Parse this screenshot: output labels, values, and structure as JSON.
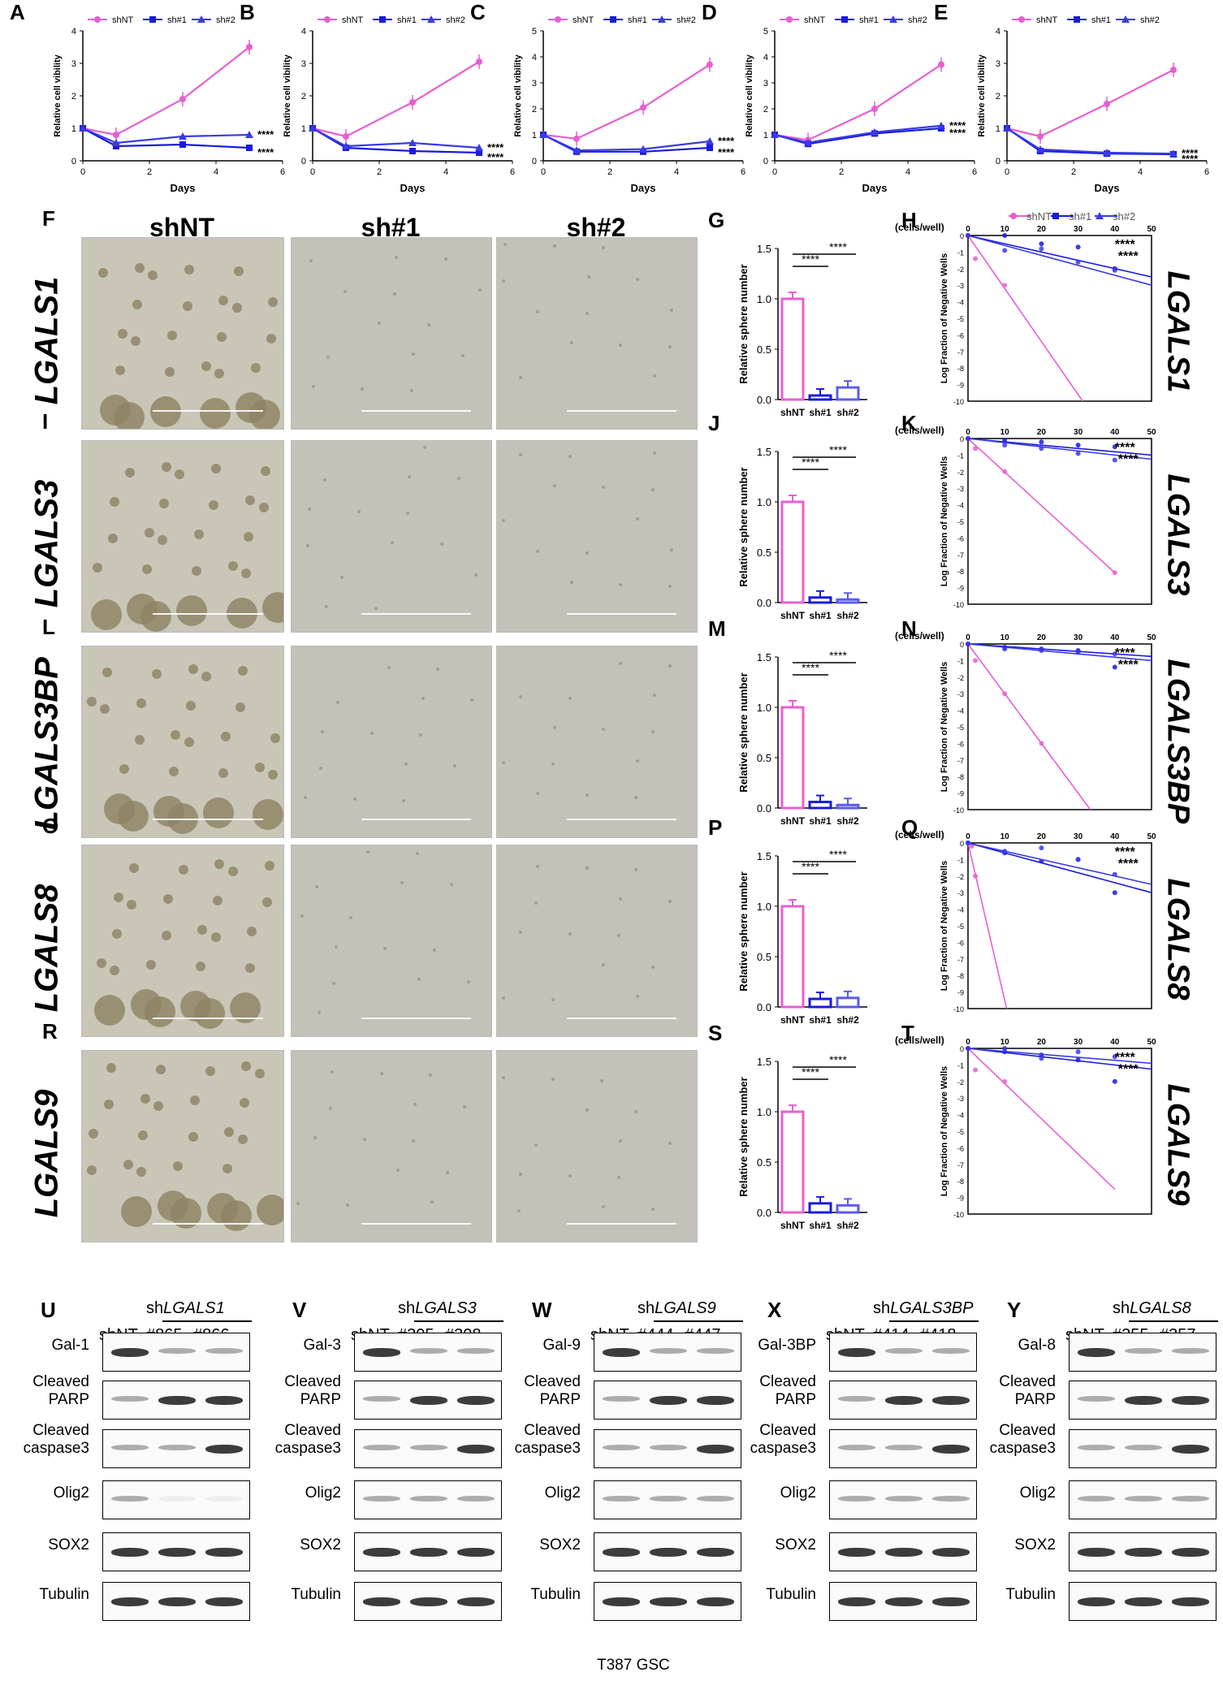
{
  "colors": {
    "shNT": "#e85fd0",
    "sh1": "#1a1adc",
    "sh2": "#3a3ae8",
    "sig": "#000000"
  },
  "growth": {
    "legend": [
      "shNT",
      "sh#1",
      "sh#2"
    ],
    "xlabel": "Days",
    "ylabel": "Relative cell vibility",
    "xticks": [
      "0",
      "2",
      "4",
      "6"
    ],
    "yticks": [
      "0",
      "1",
      "2",
      "3",
      "4"
    ],
    "sig": "****"
  },
  "chart_data": [
    {
      "panel": "A",
      "type": "line",
      "x": [
        0,
        1,
        3,
        5
      ],
      "series": [
        {
          "name": "shNT",
          "values": [
            1.0,
            0.8,
            1.9,
            3.5
          ]
        },
        {
          "name": "sh#1",
          "values": [
            1.0,
            0.45,
            0.5,
            0.4
          ]
        },
        {
          "name": "sh#2",
          "values": [
            1.0,
            0.55,
            0.75,
            0.8
          ]
        }
      ],
      "xlabel": "Days",
      "ylabel": "Relative cell vibility",
      "xlim": [
        0,
        6
      ],
      "ylim": [
        0,
        4
      ]
    },
    {
      "panel": "B",
      "type": "line",
      "x": [
        0,
        1,
        3,
        5
      ],
      "series": [
        {
          "name": "shNT",
          "values": [
            1.0,
            0.75,
            1.8,
            3.05
          ]
        },
        {
          "name": "sh#1",
          "values": [
            1.0,
            0.4,
            0.3,
            0.25
          ]
        },
        {
          "name": "sh#2",
          "values": [
            1.0,
            0.45,
            0.55,
            0.4
          ]
        }
      ],
      "xlabel": "Days",
      "ylabel": "Relative cell vibility",
      "xlim": [
        0,
        6
      ],
      "ylim": [
        0,
        4
      ]
    },
    {
      "panel": "C",
      "type": "line",
      "x": [
        0,
        1,
        3,
        5
      ],
      "series": [
        {
          "name": "shNT",
          "values": [
            1.0,
            0.85,
            2.05,
            3.7
          ]
        },
        {
          "name": "sh#1",
          "values": [
            1.0,
            0.35,
            0.35,
            0.5
          ]
        },
        {
          "name": "sh#2",
          "values": [
            1.0,
            0.4,
            0.45,
            0.75
          ]
        }
      ],
      "xlabel": "Days",
      "ylabel": "Relative cell vibility",
      "xlim": [
        0,
        6
      ],
      "ylim": [
        0,
        5
      ]
    },
    {
      "panel": "D",
      "type": "line",
      "x": [
        0,
        1,
        3,
        5
      ],
      "series": [
        {
          "name": "shNT",
          "values": [
            1.0,
            0.8,
            2.0,
            3.7
          ]
        },
        {
          "name": "sh#1",
          "values": [
            1.0,
            0.65,
            1.05,
            1.25
          ]
        },
        {
          "name": "sh#2",
          "values": [
            1.0,
            0.7,
            1.1,
            1.35
          ]
        }
      ],
      "xlabel": "Days",
      "ylabel": "Relative cell vibility",
      "xlim": [
        0,
        6
      ],
      "ylim": [
        0,
        5
      ]
    },
    {
      "panel": "E",
      "type": "line",
      "x": [
        0,
        1,
        3,
        5
      ],
      "series": [
        {
          "name": "shNT",
          "values": [
            1.0,
            0.75,
            1.75,
            2.8
          ]
        },
        {
          "name": "sh#1",
          "values": [
            1.0,
            0.3,
            0.22,
            0.2
          ]
        },
        {
          "name": "sh#2",
          "values": [
            1.0,
            0.35,
            0.25,
            0.22
          ]
        }
      ],
      "xlabel": "Days",
      "ylabel": "Relative cell vibility",
      "xlim": [
        0,
        6
      ],
      "ylim": [
        0,
        4
      ]
    },
    {
      "panel": "G",
      "type": "bar",
      "categories": [
        "shNT",
        "sh#1",
        "sh#2"
      ],
      "values": [
        1.0,
        0.04,
        0.12
      ],
      "ylabel": "Relative sphere number",
      "ylim": [
        0,
        1.5
      ]
    },
    {
      "panel": "J",
      "type": "bar",
      "categories": [
        "shNT",
        "sh#1",
        "sh#2"
      ],
      "values": [
        1.0,
        0.05,
        0.03
      ],
      "ylabel": "Relative sphere number",
      "ylim": [
        0,
        1.5
      ]
    },
    {
      "panel": "M",
      "type": "bar",
      "categories": [
        "shNT",
        "sh#1",
        "sh#2"
      ],
      "values": [
        1.0,
        0.06,
        0.03
      ],
      "ylabel": "Relative sphere number",
      "ylim": [
        0,
        1.5
      ]
    },
    {
      "panel": "P",
      "type": "bar",
      "categories": [
        "shNT",
        "sh#1",
        "sh#2"
      ],
      "values": [
        1.0,
        0.08,
        0.09
      ],
      "ylabel": "Relative sphere number",
      "ylim": [
        0,
        1.5
      ]
    },
    {
      "panel": "S",
      "type": "bar",
      "categories": [
        "shNT",
        "sh#1",
        "sh#2"
      ],
      "values": [
        1.0,
        0.09,
        0.07
      ],
      "ylabel": "Relative sphere number",
      "ylim": [
        0,
        1.5
      ]
    },
    {
      "panel": "H",
      "type": "line",
      "xlabel": "(cells/well)",
      "ylabel": "Log Fraction of Negative Wells",
      "xlim": [
        0,
        50
      ],
      "ylim": [
        -10,
        0
      ],
      "series": [
        {
          "name": "shNT",
          "slope": -0.32,
          "points": [
            [
              0,
              0
            ],
            [
              2,
              -1.4
            ],
            [
              10,
              -3.0
            ]
          ]
        },
        {
          "name": "sh#1",
          "slope": -0.05,
          "points": [
            [
              0,
              0
            ],
            [
              10,
              0
            ],
            [
              20,
              -0.5
            ],
            [
              30,
              -0.7
            ],
            [
              40,
              -2.0
            ]
          ]
        },
        {
          "name": "sh#2",
          "slope": -0.06,
          "points": [
            [
              0,
              0
            ],
            [
              10,
              -0.9
            ],
            [
              20,
              -0.8
            ],
            [
              30,
              -1.6
            ],
            [
              40,
              -2.1
            ]
          ]
        }
      ]
    },
    {
      "panel": "K",
      "type": "line",
      "xlabel": "(cells/well)",
      "ylabel": "Log Fraction of Negative Wells",
      "xlim": [
        0,
        50
      ],
      "ylim": [
        -10,
        0
      ],
      "series": [
        {
          "name": "shNT",
          "slope": -0.2,
          "points": [
            [
              0,
              0
            ],
            [
              2,
              -0.6
            ],
            [
              10,
              -2.0
            ],
            [
              40,
              -8.1
            ]
          ]
        },
        {
          "name": "sh#1",
          "slope": -0.02,
          "points": [
            [
              0,
              0
            ],
            [
              10,
              -0.1
            ],
            [
              20,
              -0.2
            ],
            [
              30,
              -0.4
            ],
            [
              40,
              -0.5
            ]
          ]
        },
        {
          "name": "sh#2",
          "slope": -0.025,
          "points": [
            [
              0,
              0
            ],
            [
              10,
              -0.4
            ],
            [
              20,
              -0.6
            ],
            [
              30,
              -0.9
            ],
            [
              40,
              -1.3
            ]
          ]
        }
      ]
    },
    {
      "panel": "N",
      "type": "line",
      "xlabel": "(cells/well)",
      "ylabel": "Log Fraction of Negative Wells",
      "xlim": [
        0,
        50
      ],
      "ylim": [
        -10,
        0
      ],
      "series": [
        {
          "name": "shNT",
          "slope": -0.3,
          "points": [
            [
              0,
              0
            ],
            [
              2,
              -1.0
            ],
            [
              10,
              -3.0
            ],
            [
              20,
              -6.0
            ]
          ]
        },
        {
          "name": "sh#1",
          "slope": -0.015,
          "points": [
            [
              0,
              0
            ],
            [
              10,
              -0.2
            ],
            [
              20,
              -0.3
            ],
            [
              30,
              -0.4
            ],
            [
              40,
              -1.4
            ]
          ]
        },
        {
          "name": "sh#2",
          "slope": -0.02,
          "points": [
            [
              0,
              0
            ],
            [
              10,
              -0.3
            ],
            [
              20,
              -0.4
            ],
            [
              30,
              -0.5
            ],
            [
              40,
              -0.6
            ]
          ]
        }
      ]
    },
    {
      "panel": "Q",
      "type": "line",
      "xlabel": "(cells/well)",
      "ylabel": "Log Fraction of Negative Wells",
      "xlim": [
        0,
        50
      ],
      "ylim": [
        -10,
        0
      ],
      "series": [
        {
          "name": "shNT",
          "slope": -0.95,
          "points": [
            [
              0,
              0
            ],
            [
              1,
              -0.2
            ],
            [
              2,
              -2.0
            ]
          ]
        },
        {
          "name": "sh#1",
          "slope": -0.06,
          "points": [
            [
              0,
              0
            ],
            [
              10,
              -0.6
            ],
            [
              20,
              -1.1
            ],
            [
              30,
              -1.0
            ],
            [
              40,
              -3.0
            ]
          ]
        },
        {
          "name": "sh#2",
          "slope": -0.05,
          "points": [
            [
              0,
              0
            ],
            [
              10,
              -0.5
            ],
            [
              20,
              -0.3
            ],
            [
              30,
              -1.0
            ],
            [
              40,
              -1.9
            ]
          ]
        }
      ]
    },
    {
      "panel": "T",
      "type": "line",
      "xlabel": "(cells/well)",
      "ylabel": "Log Fraction of Negative Wells",
      "xlim": [
        0,
        50
      ],
      "ylim": [
        -10,
        0
      ],
      "series": [
        {
          "name": "shNT",
          "slope": -0.21,
          "points": [
            [
              0,
              0
            ],
            [
              2,
              -1.3
            ],
            [
              10,
              -2.0
            ]
          ]
        },
        {
          "name": "sh#1",
          "slope": -0.025,
          "points": [
            [
              0,
              0
            ],
            [
              10,
              -0.2
            ],
            [
              20,
              -0.4
            ],
            [
              30,
              -0.7
            ],
            [
              40,
              -2.0
            ]
          ]
        },
        {
          "name": "sh#2",
          "slope": -0.018,
          "points": [
            [
              0,
              0
            ],
            [
              10,
              0
            ],
            [
              20,
              -0.6
            ],
            [
              30,
              -0.2
            ],
            [
              40,
              -0.5
            ]
          ]
        }
      ]
    }
  ],
  "bars": {
    "yticks": [
      "0.0",
      "0.5",
      "1.0",
      "1.5"
    ],
    "categories": [
      "shNT",
      "sh#1",
      "sh#2"
    ],
    "ylabel": "Relative sphere number",
    "sig": "****"
  },
  "lda": {
    "xlabel": "(cells/well)",
    "ylabel": "Log Fraction of Negative Wells",
    "xticks": [
      "0",
      "10",
      "20",
      "30",
      "40",
      "50"
    ],
    "yticks": [
      "0",
      "-1",
      "-2",
      "-3",
      "-4",
      "-5",
      "-6",
      "-7",
      "-8",
      "-9",
      "-10"
    ],
    "legend": [
      "shNT",
      "sh#1",
      "sh#2"
    ],
    "sig": "****"
  },
  "micro": {
    "columns": [
      "shNT",
      "sh#1",
      "sh#2"
    ],
    "rows": [
      {
        "letter": "F",
        "gene": "LGALS1",
        "bar_letter": "G",
        "lda_letter": "H"
      },
      {
        "letter": "I",
        "gene": "LGALS3",
        "bar_letter": "J",
        "lda_letter": "K"
      },
      {
        "letter": "L",
        "gene": "LGALS3BP",
        "bar_letter": "M",
        "lda_letter": "N"
      },
      {
        "letter": "O",
        "gene": "LGALS8",
        "bar_letter": "P",
        "lda_letter": "Q"
      },
      {
        "letter": "R",
        "gene": "LGALS9",
        "bar_letter": "S",
        "lda_letter": "T"
      }
    ]
  },
  "western": {
    "footer": "T387 GSC",
    "blots": [
      {
        "letter": "U",
        "sh_prefix": "sh",
        "gene": "LGALS1",
        "lanes": [
          "shNT",
          "#865",
          "#866"
        ],
        "rows": [
          "Gal-1",
          "Cleaved PARP",
          "Cleaved caspase3",
          "Olig2",
          "SOX2",
          "Tubulin"
        ]
      },
      {
        "letter": "V",
        "sh_prefix": "sh",
        "gene": "LGALS3",
        "lanes": [
          "shNT",
          "#305",
          "#308"
        ],
        "rows": [
          "Gal-3",
          "Cleaved PARP",
          "Cleaved caspase3",
          "Olig2",
          "SOX2",
          "Tubulin"
        ]
      },
      {
        "letter": "W",
        "sh_prefix": "sh",
        "gene": "LGALS9",
        "lanes": [
          "shNT",
          "#444",
          "#447"
        ],
        "rows": [
          "Gal-9",
          "Cleaved PARP",
          "Cleaved caspase3",
          "Olig2",
          "SOX2",
          "Tubulin"
        ]
      },
      {
        "letter": "X",
        "sh_prefix": "sh",
        "gene": "LGALS3BP",
        "lanes": [
          "shNT",
          "#414",
          "#418"
        ],
        "rows": [
          "Gal-3BP",
          "Cleaved PARP",
          "Cleaved caspase3",
          "Olig2",
          "SOX2",
          "Tubulin"
        ]
      },
      {
        "letter": "Y",
        "sh_prefix": "sh",
        "gene": "LGALS8",
        "lanes": [
          "shNT",
          "#355",
          "#357"
        ],
        "rows": [
          "Gal-8",
          "Cleaved PARP",
          "Cleaved caspase3",
          "Olig2",
          "SOX2",
          "Tubulin"
        ]
      }
    ]
  }
}
